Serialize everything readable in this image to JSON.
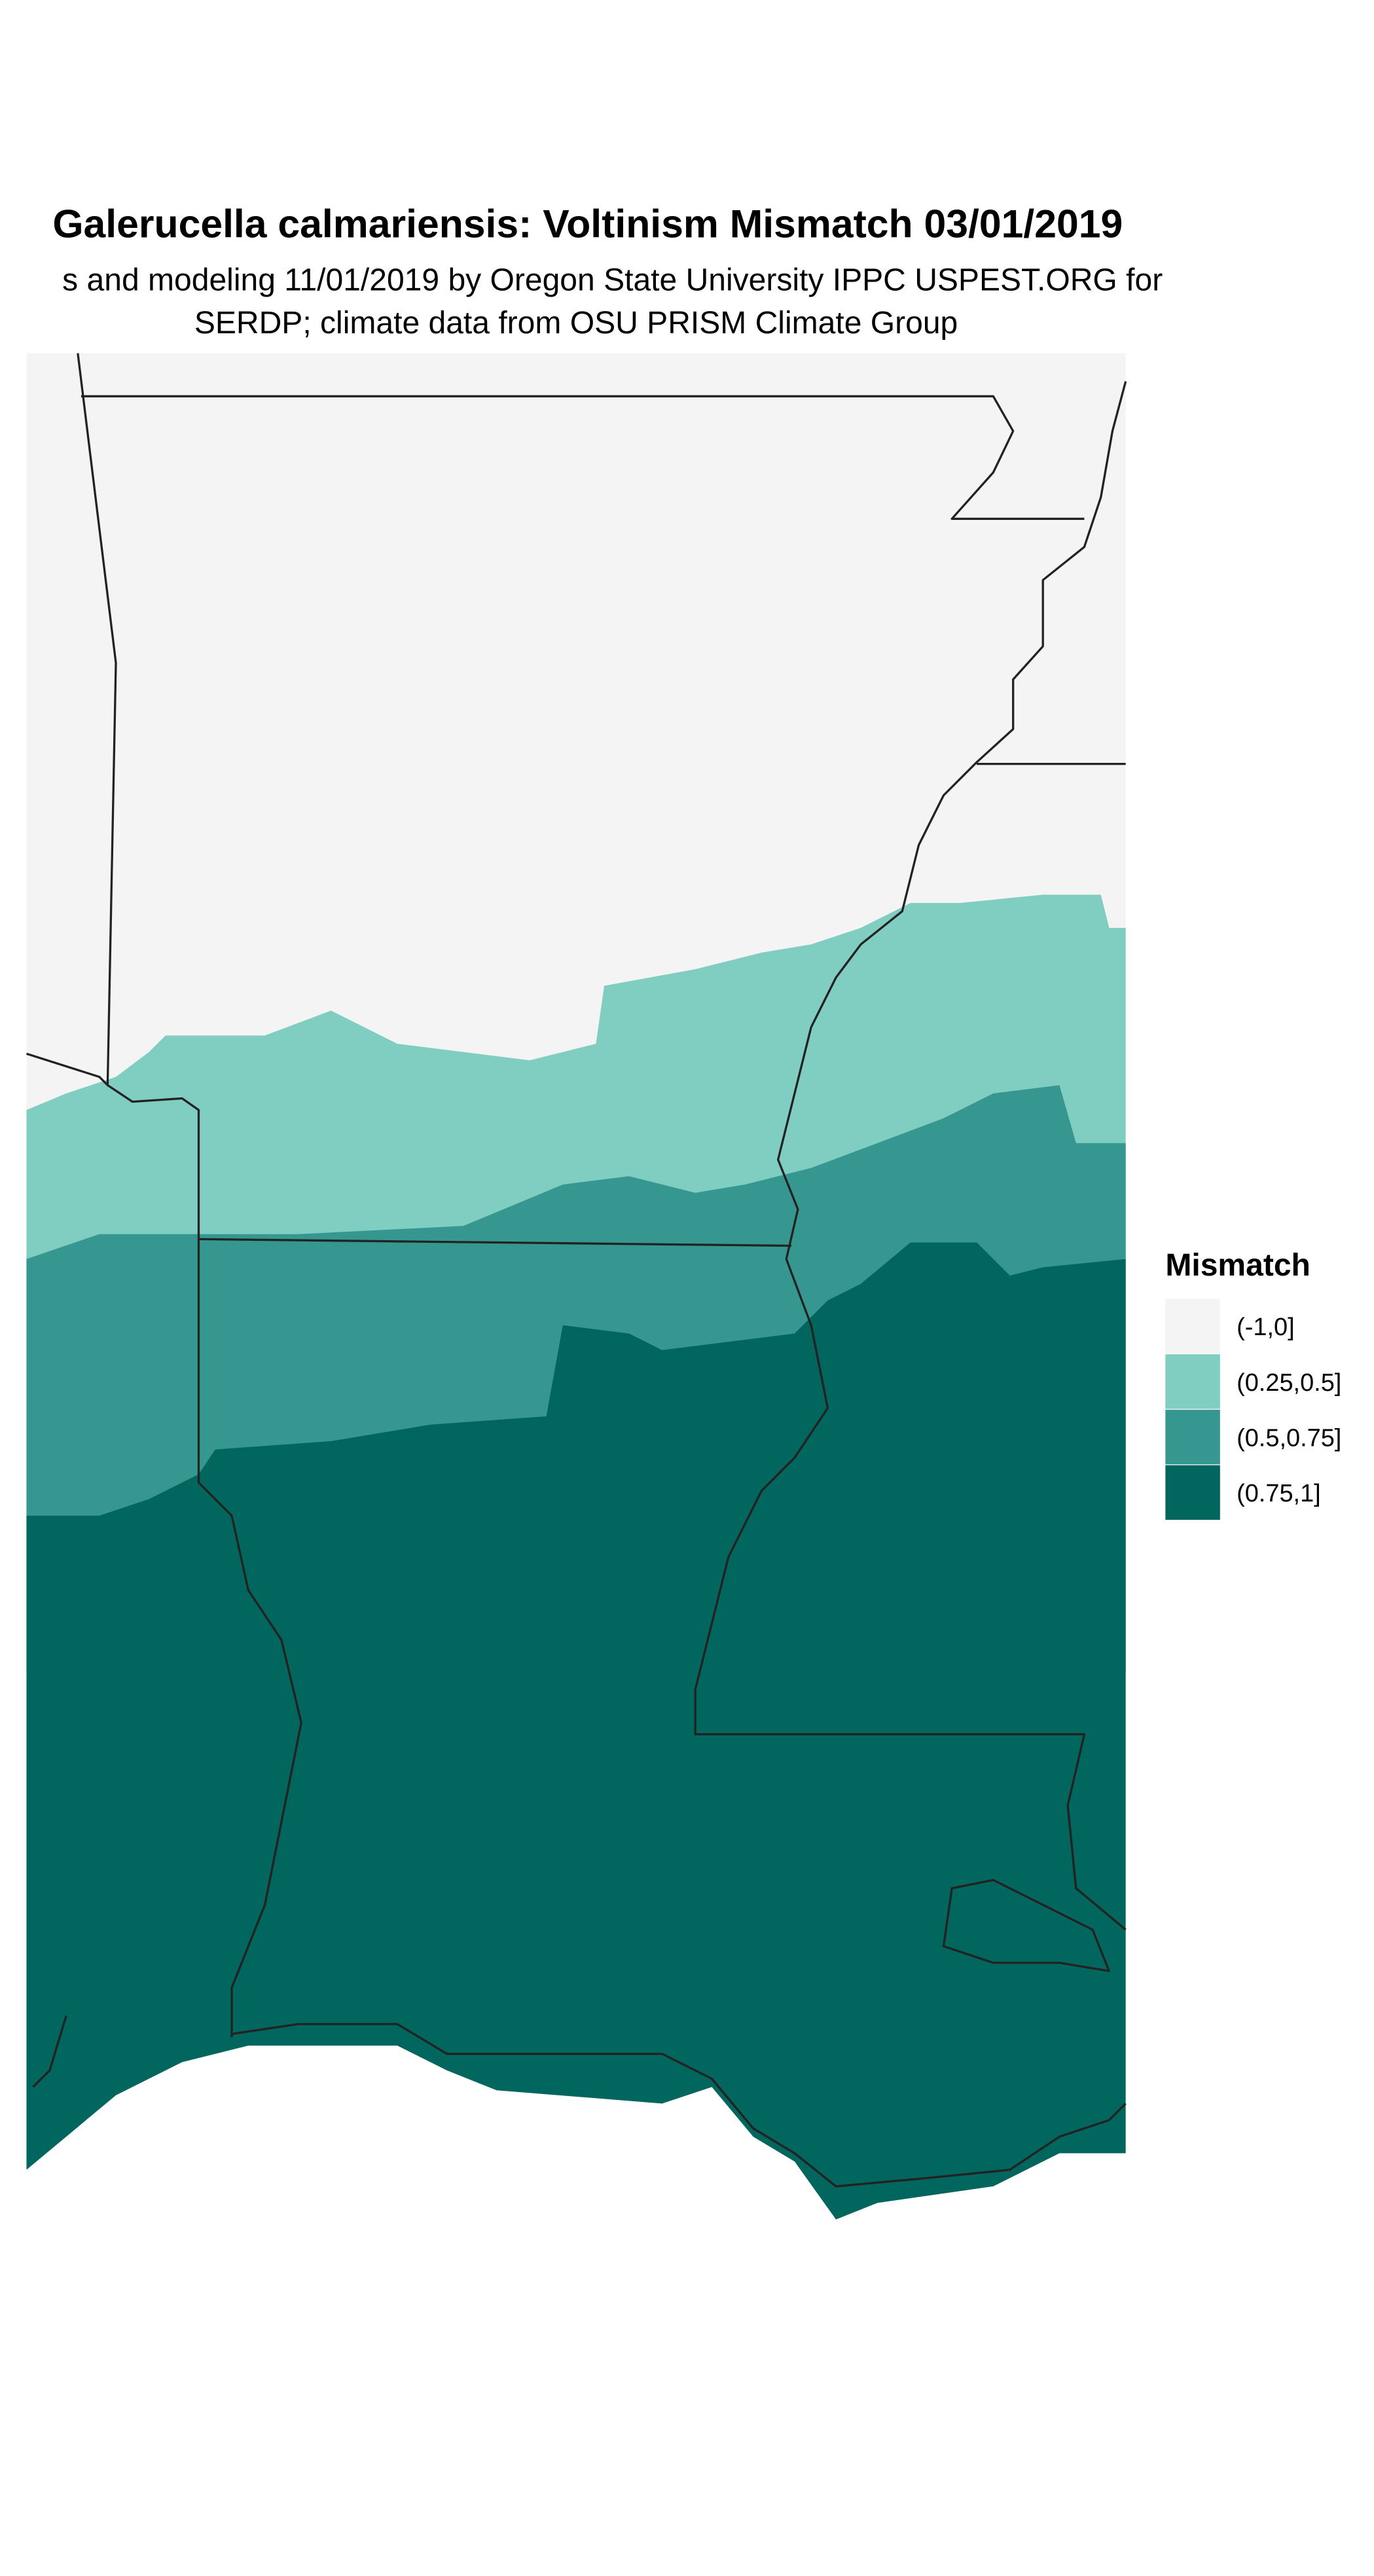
{
  "header": {
    "title": "Galerucella calmariensis: Voltinism Mismatch 03/01/2019",
    "subtitle": [
      "s and modeling 11/01/2019 by Oregon State University IPPC USPEST.ORG for",
      "SERDP; climate data from OSU PRISM Climate Group"
    ]
  },
  "legend": {
    "title": "Mismatch",
    "items": [
      {
        "label": "(-1,0]",
        "color": "#f4f4f4"
      },
      {
        "label": "(0.25,0.5]",
        "color": "#80cdc1"
      },
      {
        "label": "(0.5,0.75]",
        "color": "#35978f"
      },
      {
        "label": "(0.75,1]",
        "color": "#01665e"
      }
    ]
  }
}
